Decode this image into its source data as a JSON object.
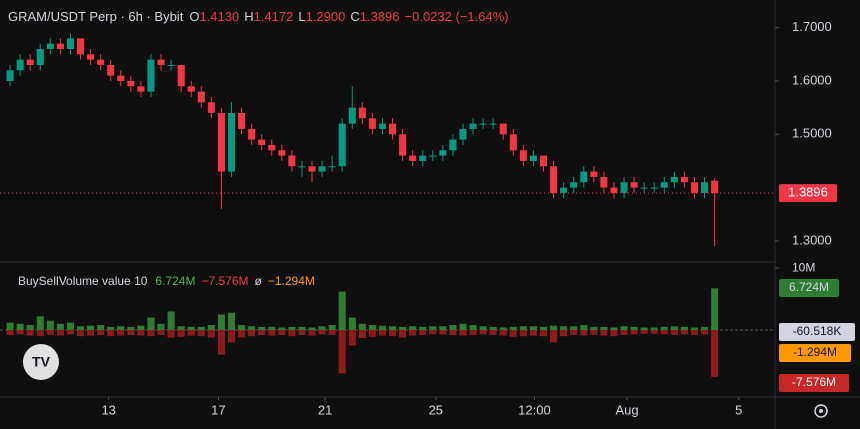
{
  "chart_data": {
    "type": "candlestick",
    "symbol": "GRAM/USDT Perp · 6h · Bybit",
    "header": {
      "o_key": "O",
      "open": "1.4130",
      "h_key": "H",
      "high": "1.4172",
      "l_key": "L",
      "low": "1.2900",
      "c_key": "C",
      "close": "1.3896",
      "change": "−0.0232 (−1.64%)"
    },
    "up_color": "#089981",
    "down_color": "#f23645",
    "ohlc": [
      [
        1.6,
        1.63,
        1.59,
        1.62
      ],
      [
        1.62,
        1.65,
        1.61,
        1.64
      ],
      [
        1.64,
        1.65,
        1.62,
        1.63
      ],
      [
        1.63,
        1.67,
        1.62,
        1.66
      ],
      [
        1.66,
        1.68,
        1.65,
        1.67
      ],
      [
        1.67,
        1.68,
        1.65,
        1.66
      ],
      [
        1.66,
        1.69,
        1.65,
        1.68
      ],
      [
        1.68,
        1.68,
        1.64,
        1.65
      ],
      [
        1.65,
        1.66,
        1.63,
        1.64
      ],
      [
        1.64,
        1.65,
        1.62,
        1.63
      ],
      [
        1.63,
        1.64,
        1.6,
        1.61
      ],
      [
        1.61,
        1.62,
        1.59,
        1.6
      ],
      [
        1.6,
        1.61,
        1.58,
        1.59
      ],
      [
        1.59,
        1.6,
        1.57,
        1.58
      ],
      [
        1.58,
        1.65,
        1.57,
        1.64
      ],
      [
        1.64,
        1.65,
        1.62,
        1.63
      ],
      [
        1.63,
        1.64,
        1.62,
        1.63
      ],
      [
        1.63,
        1.63,
        1.58,
        1.59
      ],
      [
        1.59,
        1.6,
        1.57,
        1.58
      ],
      [
        1.58,
        1.59,
        1.55,
        1.56
      ],
      [
        1.56,
        1.57,
        1.53,
        1.54
      ],
      [
        1.54,
        1.55,
        1.36,
        1.43
      ],
      [
        1.43,
        1.56,
        1.42,
        1.54
      ],
      [
        1.54,
        1.55,
        1.5,
        1.51
      ],
      [
        1.51,
        1.52,
        1.48,
        1.49
      ],
      [
        1.49,
        1.5,
        1.47,
        1.48
      ],
      [
        1.48,
        1.49,
        1.46,
        1.47
      ],
      [
        1.47,
        1.48,
        1.45,
        1.46
      ],
      [
        1.46,
        1.47,
        1.43,
        1.44
      ],
      [
        1.44,
        1.45,
        1.42,
        1.44
      ],
      [
        1.44,
        1.45,
        1.41,
        1.43
      ],
      [
        1.43,
        1.45,
        1.42,
        1.44
      ],
      [
        1.44,
        1.46,
        1.43,
        1.44
      ],
      [
        1.44,
        1.53,
        1.43,
        1.52
      ],
      [
        1.52,
        1.59,
        1.51,
        1.55
      ],
      [
        1.55,
        1.56,
        1.52,
        1.53
      ],
      [
        1.53,
        1.54,
        1.5,
        1.51
      ],
      [
        1.51,
        1.53,
        1.5,
        1.52
      ],
      [
        1.52,
        1.53,
        1.49,
        1.5
      ],
      [
        1.5,
        1.51,
        1.45,
        1.46
      ],
      [
        1.46,
        1.47,
        1.44,
        1.45
      ],
      [
        1.45,
        1.47,
        1.44,
        1.46
      ],
      [
        1.46,
        1.47,
        1.45,
        1.46
      ],
      [
        1.46,
        1.48,
        1.45,
        1.47
      ],
      [
        1.47,
        1.5,
        1.46,
        1.49
      ],
      [
        1.49,
        1.52,
        1.48,
        1.51
      ],
      [
        1.51,
        1.53,
        1.5,
        1.52
      ],
      [
        1.52,
        1.53,
        1.51,
        1.52
      ],
      [
        1.52,
        1.53,
        1.51,
        1.52
      ],
      [
        1.52,
        1.52,
        1.49,
        1.5
      ],
      [
        1.5,
        1.51,
        1.46,
        1.47
      ],
      [
        1.47,
        1.48,
        1.44,
        1.45
      ],
      [
        1.45,
        1.47,
        1.44,
        1.46
      ],
      [
        1.46,
        1.46,
        1.43,
        1.44
      ],
      [
        1.44,
        1.45,
        1.38,
        1.39
      ],
      [
        1.39,
        1.41,
        1.38,
        1.4
      ],
      [
        1.4,
        1.42,
        1.39,
        1.41
      ],
      [
        1.41,
        1.44,
        1.4,
        1.43
      ],
      [
        1.43,
        1.44,
        1.41,
        1.42
      ],
      [
        1.42,
        1.43,
        1.39,
        1.4
      ],
      [
        1.4,
        1.41,
        1.38,
        1.39
      ],
      [
        1.39,
        1.42,
        1.38,
        1.41
      ],
      [
        1.41,
        1.42,
        1.39,
        1.4
      ],
      [
        1.4,
        1.41,
        1.39,
        1.4
      ],
      [
        1.4,
        1.41,
        1.39,
        1.4
      ],
      [
        1.4,
        1.42,
        1.39,
        1.41
      ],
      [
        1.41,
        1.43,
        1.4,
        1.42
      ],
      [
        1.42,
        1.43,
        1.4,
        1.41
      ],
      [
        1.41,
        1.42,
        1.38,
        1.39
      ],
      [
        1.39,
        1.42,
        1.38,
        1.41
      ],
      [
        1.413,
        1.4172,
        1.29,
        1.3896
      ]
    ],
    "ylim": [
      1.2604,
      1.7519
    ],
    "yticks": [
      {
        "value": 1.7,
        "label": "1.7000"
      },
      {
        "value": 1.6,
        "label": "1.6000"
      },
      {
        "value": 1.5,
        "label": "1.5000"
      },
      {
        "value": 1.3,
        "label": "1.3000"
      }
    ],
    "xlim": [
      -1,
      76
    ],
    "xticks": [
      {
        "value": 9.8,
        "label": "13"
      },
      {
        "value": 20.7,
        "label": "17"
      },
      {
        "value": 31.3,
        "label": "21"
      },
      {
        "value": 42.3,
        "label": "25"
      },
      {
        "value": 52.1,
        "label": "12:00"
      },
      {
        "value": 61.3,
        "label": "Aug"
      },
      {
        "value": 72.4,
        "label": "5"
      }
    ],
    "volume": {
      "title": "BuySellVolume value 10",
      "buy_label": "6.724M",
      "sell_label": "−7.576M",
      "avg_symbol": "ø",
      "net_label": "−1.294M",
      "buy_color": "#2e7d32",
      "sell_color": "#8e1b1b",
      "ylim": [
        -10.5,
        10.5
      ],
      "yticks": [
        {
          "value": 10,
          "label": "10M"
        }
      ],
      "buy": [
        1.2,
        1.0,
        0.8,
        2.2,
        1.5,
        1.0,
        1.2,
        0.6,
        0.7,
        0.8,
        0.5,
        0.6,
        0.5,
        0.7,
        2.0,
        1.0,
        3.0,
        0.6,
        0.5,
        0.5,
        0.8,
        2.5,
        2.8,
        0.8,
        0.6,
        0.5,
        0.5,
        0.4,
        0.5,
        0.5,
        0.4,
        0.6,
        0.8,
        6.2,
        2.0,
        1.0,
        0.8,
        0.7,
        0.6,
        0.5,
        0.6,
        0.5,
        0.6,
        0.6,
        0.8,
        1.0,
        0.8,
        0.6,
        0.5,
        0.4,
        0.5,
        0.6,
        0.6,
        0.5,
        0.7,
        0.6,
        0.6,
        0.8,
        0.5,
        0.5,
        0.4,
        0.6,
        0.5,
        0.4,
        0.4,
        0.5,
        0.6,
        0.5,
        0.4,
        0.5,
        6.724
      ],
      "sell": [
        -0.8,
        -0.7,
        -0.9,
        -1.0,
        -0.8,
        -0.9,
        -0.7,
        -1.0,
        -0.9,
        -0.8,
        -1.0,
        -0.9,
        -0.8,
        -0.9,
        -1.0,
        -0.8,
        -1.2,
        -1.1,
        -0.9,
        -1.0,
        -1.2,
        -4.0,
        -2.0,
        -1.2,
        -1.0,
        -0.8,
        -0.9,
        -0.8,
        -1.0,
        -0.8,
        -0.9,
        -0.7,
        -0.8,
        -7.0,
        -2.5,
        -1.3,
        -1.1,
        -0.9,
        -1.0,
        -1.2,
        -0.9,
        -0.8,
        -0.7,
        -0.7,
        -0.8,
        -0.9,
        -0.8,
        -0.7,
        -0.8,
        -0.9,
        -1.1,
        -1.0,
        -0.9,
        -1.0,
        -2.0,
        -1.0,
        -0.8,
        -0.9,
        -0.8,
        -0.9,
        -1.0,
        -0.8,
        -0.7,
        -0.6,
        -0.6,
        -0.7,
        -0.8,
        -0.7,
        -0.8,
        -0.7,
        -7.576
      ],
      "scale_labels": [
        "6.724M",
        "-60.518K",
        "-1.294M",
        "-7.576M"
      ]
    }
  }
}
